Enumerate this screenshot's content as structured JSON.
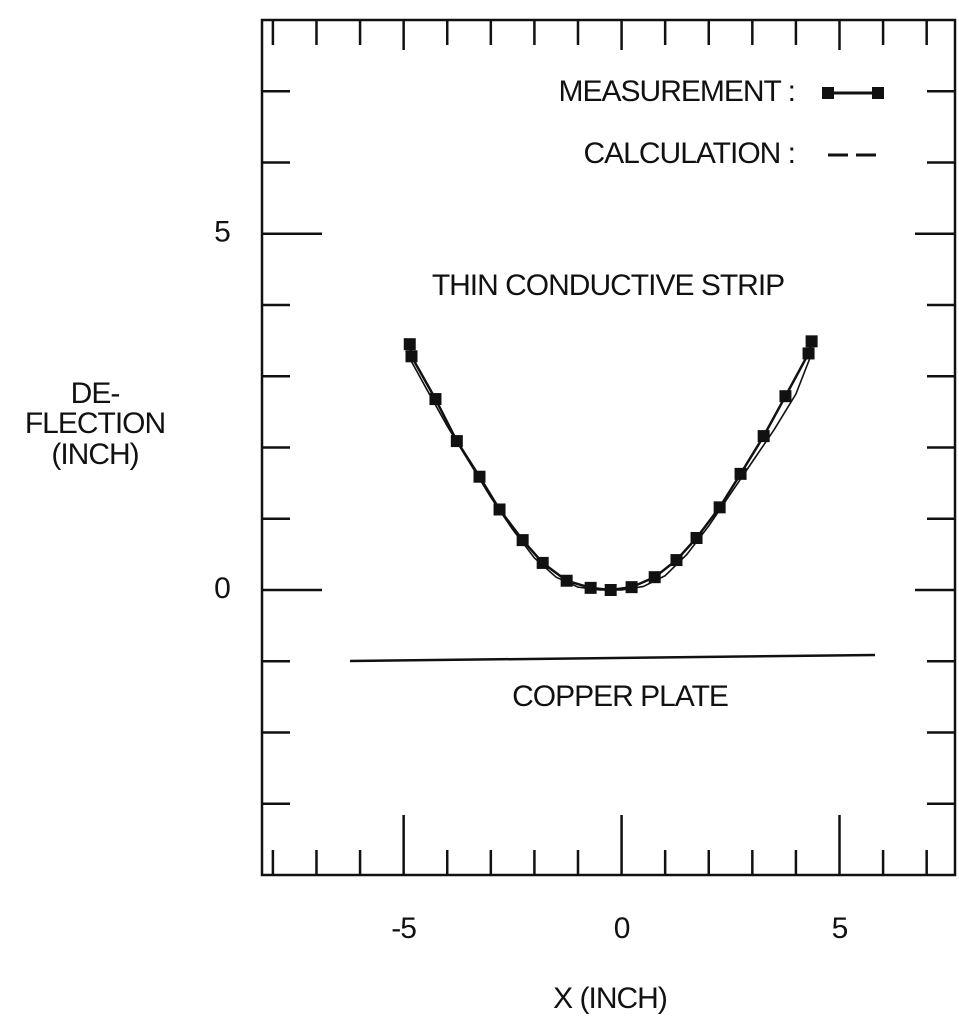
{
  "chart_data": {
    "type": "line",
    "xlabel": "X (INCH)",
    "ylabel": [
      "DE-",
      "FLECTION",
      "(INCH)"
    ],
    "annotations": [
      "THIN CONDUCTIVE STRIP",
      "COPPER PLATE"
    ],
    "xlim": [
      -8.25,
      7.65
    ],
    "ylim": [
      -4,
      8
    ],
    "xticks": [
      -5,
      0,
      5
    ],
    "yticks": [
      0,
      5
    ],
    "xminor_ticks": [
      -8,
      -7,
      -6,
      -4,
      -3,
      -2,
      -1,
      1,
      2,
      3,
      4,
      6,
      7
    ],
    "yminor_ticks": [
      -3,
      -2,
      -1,
      1,
      2,
      3,
      4,
      6,
      7
    ],
    "series": [
      {
        "name": "MEASUREMENT :",
        "color": "#111111",
        "markers": true,
        "x": [
          -4.86,
          -4.82,
          -4.27,
          -3.78,
          -3.26,
          -2.8,
          -2.27,
          -1.81,
          -1.26,
          -0.71,
          -0.25,
          0.23,
          0.76,
          1.26,
          1.72,
          2.25,
          2.73,
          3.26,
          3.76,
          4.29,
          4.36
        ],
        "values": [
          3.45,
          3.28,
          2.68,
          2.09,
          1.59,
          1.13,
          0.7,
          0.38,
          0.13,
          0.03,
          0,
          0.04,
          0.18,
          0.42,
          0.73,
          1.16,
          1.63,
          2.16,
          2.72,
          3.32,
          3.49
        ]
      },
      {
        "name": "CALCULATION :",
        "color": "#111111",
        "markers": false,
        "x": [
          -4.95,
          -4.5,
          -4,
          -3.5,
          -3,
          -2.5,
          -2,
          -1.5,
          -1,
          -0.5,
          0,
          0.5,
          1,
          1.5,
          2,
          2.5,
          3,
          3.5,
          4,
          4.35
        ],
        "values": [
          3.35,
          2.85,
          2.3,
          1.8,
          1.3,
          0.85,
          0.45,
          0.18,
          0.04,
          0,
          0,
          0.05,
          0.2,
          0.5,
          0.9,
          1.35,
          1.8,
          2.25,
          2.75,
          3.3
        ]
      }
    ]
  }
}
